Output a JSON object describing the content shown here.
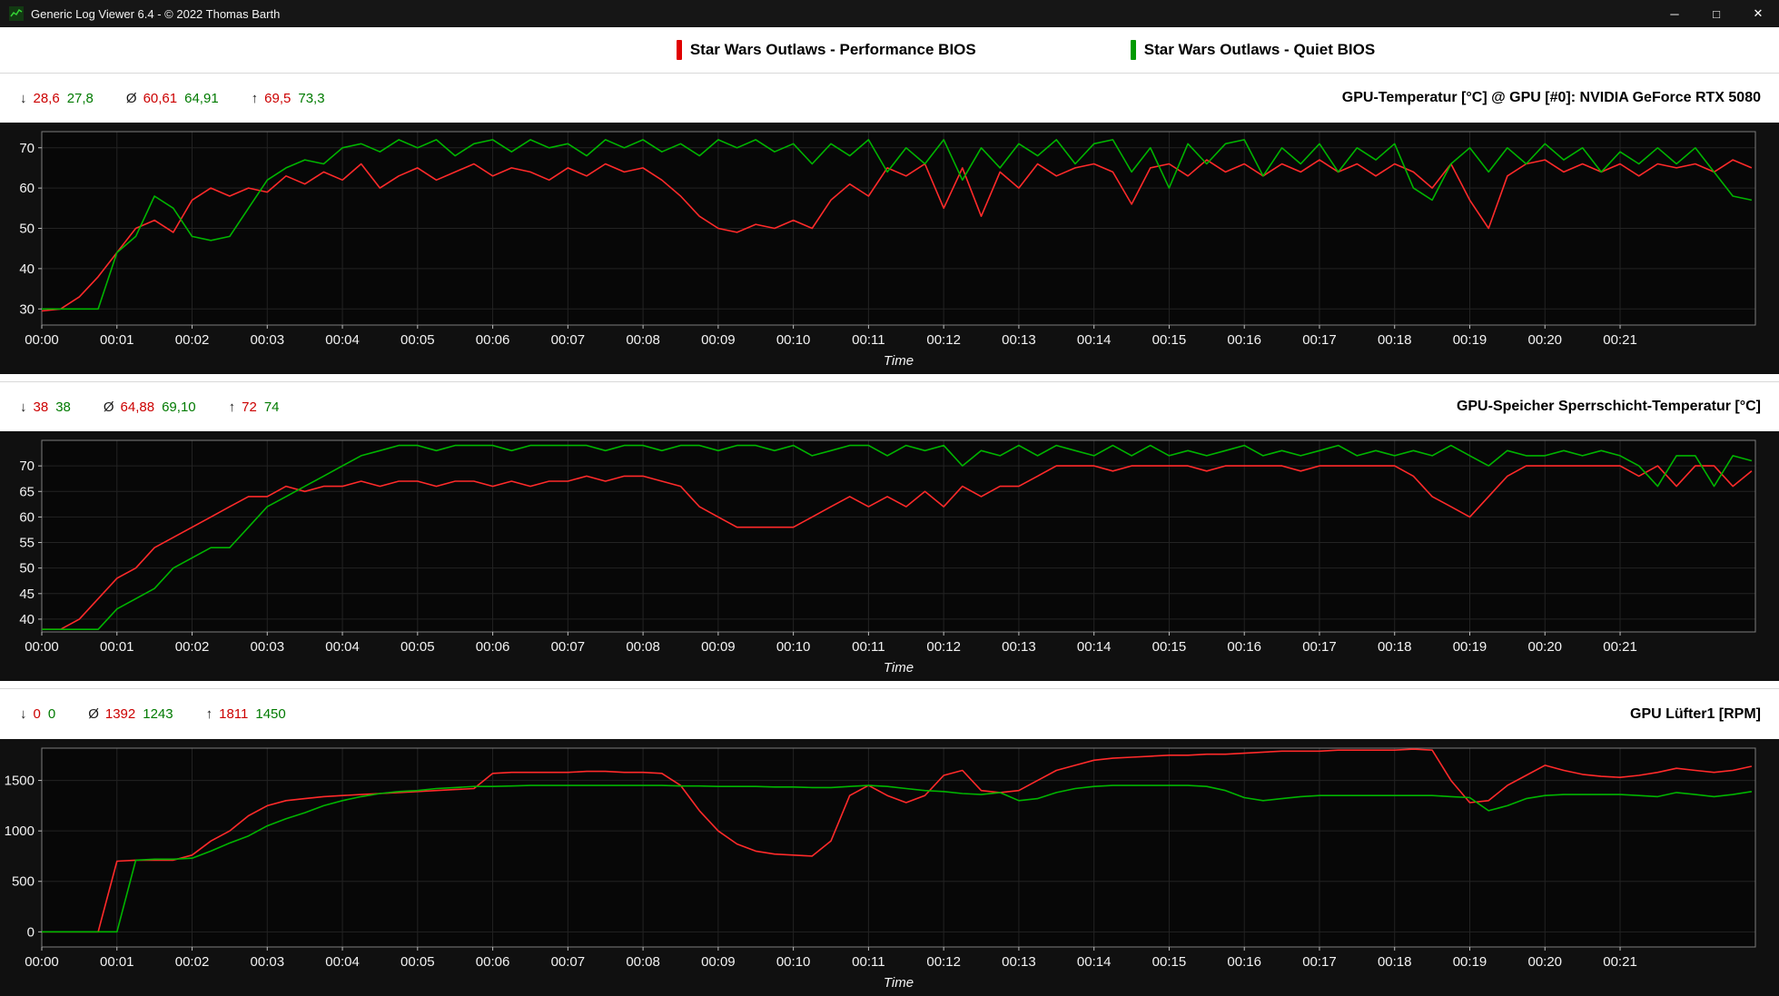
{
  "window": {
    "title": "Generic Log Viewer 6.4 - © 2022 Thomas Barth",
    "controls": {
      "minimize": "─",
      "maximize": "□",
      "close": "✕"
    }
  },
  "legend": {
    "items": [
      {
        "label": "Star Wars Outlaws - Performance BIOS",
        "color": "#e00000"
      },
      {
        "label": "Star Wars Outlaws - Quiet BIOS",
        "color": "#009a00"
      }
    ]
  },
  "symbols": {
    "min": "↓",
    "avg": "Ø",
    "max": "↑"
  },
  "chart_data": [
    {
      "type": "line",
      "title": "GPU-Temperatur [°C] @ GPU [#0]: NVIDIA GeForce RTX 5080",
      "stats": {
        "min": [
          "28,6",
          "27,8"
        ],
        "avg": [
          "60,61",
          "64,91"
        ],
        "max": [
          "69,5",
          "73,3"
        ]
      },
      "xlabel": "Time",
      "x_ticks": [
        "00:00",
        "00:01",
        "00:02",
        "00:03",
        "00:04",
        "00:05",
        "00:06",
        "00:07",
        "00:08",
        "00:09",
        "00:10",
        "00:11",
        "00:12",
        "00:13",
        "00:14",
        "00:15",
        "00:16",
        "00:17",
        "00:18",
        "00:19",
        "00:20",
        "00:21"
      ],
      "x_domain": [
        0,
        22.8
      ],
      "x_start": 0,
      "x_step": 0.25,
      "y_ticks": [
        30,
        40,
        50,
        60,
        70
      ],
      "y_domain": [
        26,
        74
      ],
      "series": [
        {
          "name": "Star Wars Outlaws - Performance BIOS",
          "color": "#ff2a2a",
          "values": [
            29.5,
            30,
            33,
            38,
            44,
            50,
            52,
            49,
            57,
            60,
            58,
            60,
            59,
            63,
            61,
            64,
            62,
            66,
            60,
            63,
            65,
            62,
            64,
            66,
            63,
            65,
            64,
            62,
            65,
            63,
            66,
            64,
            65,
            62,
            58,
            53,
            50,
            49,
            51,
            50,
            52,
            50,
            57,
            61,
            58,
            65,
            63,
            66,
            55,
            65,
            53,
            64,
            60,
            66,
            63,
            65,
            66,
            64,
            56,
            65,
            66,
            63,
            67,
            64,
            66,
            63,
            66,
            64,
            67,
            64,
            66,
            63,
            66,
            64,
            60,
            66,
            57,
            50,
            63,
            66,
            67,
            64,
            66,
            64,
            66,
            63,
            66,
            65,
            66,
            64,
            67,
            65
          ]
        },
        {
          "name": "Star Wars Outlaws - Quiet BIOS",
          "color": "#00b400",
          "values": [
            30,
            30,
            30,
            30,
            44,
            48,
            58,
            55,
            48,
            47,
            48,
            55,
            62,
            65,
            67,
            66,
            70,
            71,
            69,
            72,
            70,
            72,
            68,
            71,
            72,
            69,
            72,
            70,
            71,
            68,
            72,
            70,
            72,
            69,
            71,
            68,
            72,
            70,
            72,
            69,
            71,
            66,
            71,
            68,
            72,
            64,
            70,
            66,
            72,
            62,
            70,
            65,
            71,
            68,
            72,
            66,
            71,
            72,
            64,
            70,
            60,
            71,
            66,
            71,
            72,
            63,
            70,
            66,
            71,
            64,
            70,
            67,
            71,
            60,
            57,
            66,
            70,
            64,
            70,
            66,
            71,
            67,
            70,
            64,
            69,
            66,
            70,
            66,
            70,
            64,
            58,
            57
          ]
        }
      ]
    },
    {
      "type": "line",
      "title": "GPU-Speicher Sperrschicht-Temperatur [°C]",
      "stats": {
        "min": [
          "38",
          "38"
        ],
        "avg": [
          "64,88",
          "69,10"
        ],
        "max": [
          "72",
          "74"
        ]
      },
      "xlabel": "Time",
      "x_ticks": [
        "00:00",
        "00:01",
        "00:02",
        "00:03",
        "00:04",
        "00:05",
        "00:06",
        "00:07",
        "00:08",
        "00:09",
        "00:10",
        "00:11",
        "00:12",
        "00:13",
        "00:14",
        "00:15",
        "00:16",
        "00:17",
        "00:18",
        "00:19",
        "00:20",
        "00:21"
      ],
      "x_domain": [
        0,
        22.8
      ],
      "x_start": 0,
      "x_step": 0.25,
      "y_ticks": [
        40,
        45,
        50,
        55,
        60,
        65,
        70
      ],
      "y_domain": [
        37.5,
        75
      ],
      "series": [
        {
          "name": "Star Wars Outlaws - Performance BIOS",
          "color": "#ff2a2a",
          "values": [
            38,
            38,
            40,
            44,
            48,
            50,
            54,
            56,
            58,
            60,
            62,
            64,
            64,
            66,
            65,
            66,
            66,
            67,
            66,
            67,
            67,
            66,
            67,
            67,
            66,
            67,
            66,
            67,
            67,
            68,
            67,
            68,
            68,
            67,
            66,
            62,
            60,
            58,
            58,
            58,
            58,
            60,
            62,
            64,
            62,
            64,
            62,
            65,
            62,
            66,
            64,
            66,
            66,
            68,
            70,
            70,
            70,
            69,
            70,
            70,
            70,
            70,
            69,
            70,
            70,
            70,
            70,
            69,
            70,
            70,
            70,
            70,
            70,
            68,
            64,
            62,
            60,
            64,
            68,
            70,
            70,
            70,
            70,
            70,
            70,
            68,
            70,
            66,
            70,
            70,
            66,
            69
          ]
        },
        {
          "name": "Star Wars Outlaws - Quiet BIOS",
          "color": "#00b400",
          "values": [
            38,
            38,
            38,
            38,
            42,
            44,
            46,
            50,
            52,
            54,
            54,
            58,
            62,
            64,
            66,
            68,
            70,
            72,
            73,
            74,
            74,
            73,
            74,
            74,
            74,
            73,
            74,
            74,
            74,
            74,
            73,
            74,
            74,
            73,
            74,
            74,
            73,
            74,
            74,
            73,
            74,
            72,
            73,
            74,
            74,
            72,
            74,
            73,
            74,
            70,
            73,
            72,
            74,
            72,
            74,
            73,
            72,
            74,
            72,
            74,
            72,
            73,
            72,
            73,
            74,
            72,
            73,
            72,
            73,
            74,
            72,
            73,
            72,
            73,
            72,
            74,
            72,
            70,
            73,
            72,
            72,
            73,
            72,
            73,
            72,
            70,
            66,
            72,
            72,
            66,
            72,
            71
          ]
        }
      ]
    },
    {
      "type": "line",
      "title": "GPU Lüfter1 [RPM]",
      "stats": {
        "min": [
          "0",
          "0"
        ],
        "avg": [
          "1392",
          "1243"
        ],
        "max": [
          "1811",
          "1450"
        ]
      },
      "xlabel": "Time",
      "x_ticks": [
        "00:00",
        "00:01",
        "00:02",
        "00:03",
        "00:04",
        "00:05",
        "00:06",
        "00:07",
        "00:08",
        "00:09",
        "00:10",
        "00:11",
        "00:12",
        "00:13",
        "00:14",
        "00:15",
        "00:16",
        "00:17",
        "00:18",
        "00:19",
        "00:20",
        "00:21"
      ],
      "x_domain": [
        0,
        22.8
      ],
      "x_start": 0,
      "x_step": 0.25,
      "y_ticks": [
        0,
        500,
        1000,
        1500
      ],
      "y_domain": [
        -150,
        1820
      ],
      "series": [
        {
          "name": "Star Wars Outlaws - Performance BIOS",
          "color": "#ff2a2a",
          "values": [
            0,
            0,
            0,
            0,
            700,
            710,
            710,
            710,
            760,
            900,
            1000,
            1150,
            1250,
            1300,
            1320,
            1340,
            1350,
            1360,
            1370,
            1380,
            1390,
            1400,
            1410,
            1420,
            1570,
            1580,
            1580,
            1580,
            1580,
            1590,
            1590,
            1580,
            1580,
            1570,
            1450,
            1200,
            1000,
            870,
            800,
            770,
            760,
            750,
            900,
            1350,
            1450,
            1350,
            1280,
            1350,
            1550,
            1600,
            1400,
            1380,
            1400,
            1500,
            1600,
            1650,
            1700,
            1720,
            1730,
            1740,
            1750,
            1750,
            1760,
            1760,
            1770,
            1780,
            1790,
            1790,
            1790,
            1800,
            1800,
            1800,
            1800,
            1810,
            1800,
            1500,
            1280,
            1300,
            1450,
            1550,
            1650,
            1600,
            1560,
            1540,
            1530,
            1550,
            1580,
            1620,
            1600,
            1580,
            1600,
            1640
          ]
        },
        {
          "name": "Star Wars Outlaws - Quiet BIOS",
          "color": "#00b400",
          "values": [
            0,
            0,
            0,
            0,
            0,
            710,
            720,
            720,
            730,
            800,
            880,
            950,
            1050,
            1120,
            1180,
            1250,
            1300,
            1340,
            1370,
            1390,
            1400,
            1420,
            1430,
            1440,
            1440,
            1445,
            1450,
            1450,
            1450,
            1450,
            1450,
            1450,
            1450,
            1450,
            1445,
            1445,
            1440,
            1440,
            1440,
            1435,
            1435,
            1430,
            1430,
            1440,
            1450,
            1440,
            1420,
            1400,
            1390,
            1370,
            1360,
            1380,
            1300,
            1320,
            1380,
            1420,
            1440,
            1450,
            1450,
            1450,
            1450,
            1450,
            1440,
            1400,
            1330,
            1300,
            1320,
            1340,
            1350,
            1350,
            1350,
            1350,
            1350,
            1350,
            1350,
            1340,
            1330,
            1200,
            1250,
            1320,
            1350,
            1360,
            1360,
            1360,
            1360,
            1350,
            1340,
            1380,
            1360,
            1340,
            1360,
            1390
          ]
        }
      ]
    }
  ]
}
